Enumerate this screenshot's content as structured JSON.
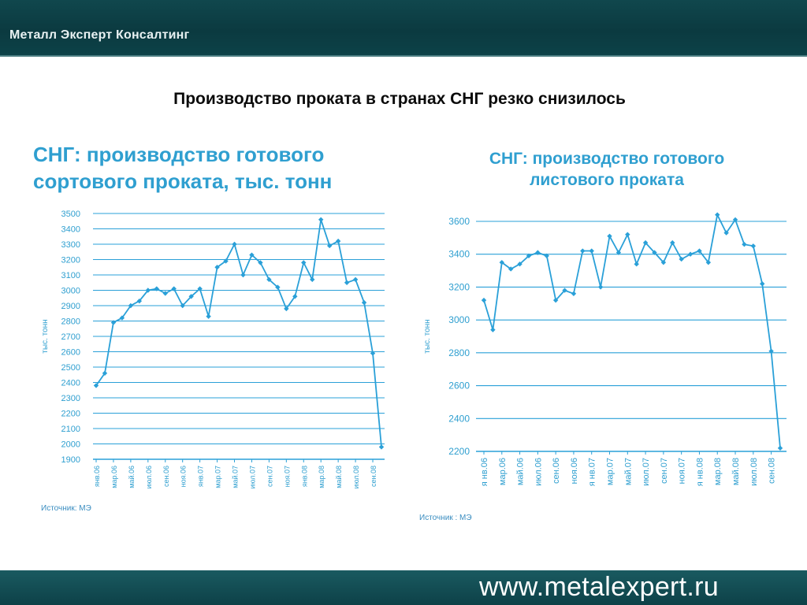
{
  "header": {
    "brand": "Металл Эксперт Консалтинг"
  },
  "footer": {
    "website": "www.metalexpert.ru"
  },
  "slide": {
    "title": "Производство проката в странах СНГ резко снизилось"
  },
  "colors": {
    "line": "#2aa0d8",
    "text": "#2f9fd0",
    "axis": "#3a8dc0"
  },
  "chart_data": [
    {
      "type": "line",
      "title_line1": "СНГ: производство готового",
      "title_line2": "сортового проката, тыс. тонн",
      "ylabel": "тыс. тонн",
      "ylim": [
        1900,
        3500
      ],
      "yticks": [
        1900,
        2000,
        2100,
        2200,
        2300,
        2400,
        2500,
        2600,
        2700,
        2800,
        2900,
        3000,
        3100,
        3200,
        3300,
        3400,
        3500
      ],
      "x_tick_labels": [
        "янв.06",
        "мар.06",
        "май.06",
        "июл.06",
        "сен.06",
        "ноя.06",
        "янв.07",
        "мар.07",
        "май.07",
        "июл.07",
        "сен.07",
        "ноя.07",
        "янв.08",
        "мар.08",
        "май.08",
        "июл.08",
        "сен.08"
      ],
      "source": "Источник: МЭ",
      "grid": true,
      "values": [
        2380,
        2460,
        2790,
        2820,
        2900,
        2930,
        3000,
        3010,
        2980,
        3010,
        2900,
        2960,
        3010,
        2830,
        3150,
        3190,
        3300,
        3100,
        3230,
        3180,
        3070,
        3020,
        2880,
        2960,
        3180,
        3070,
        3460,
        3290,
        3320,
        3050,
        3070,
        2920,
        2590,
        1980
      ]
    },
    {
      "type": "line",
      "title_line1": "СНГ: производство готового",
      "title_line2": "листового проката",
      "ylabel": "тыс. тонн",
      "ylim": [
        2200,
        3600
      ],
      "yticks": [
        2200,
        2400,
        2600,
        2800,
        3000,
        3200,
        3400,
        3600
      ],
      "x_tick_labels": [
        "я нв.06",
        "мар.06",
        "май.06",
        "июл.06",
        "сен.06",
        "ноя.06",
        "я нв.07",
        "мар.07",
        "май.07",
        "июл.07",
        "сен.07",
        "ноя.07",
        "я нв.08",
        "мар.08",
        "май.08",
        "июл.08",
        "сен.08"
      ],
      "source": "Источник : МЭ",
      "grid": true,
      "values": [
        3120,
        2940,
        3350,
        3310,
        3340,
        3390,
        3410,
        3390,
        3120,
        3180,
        3160,
        3420,
        3420,
        3200,
        3510,
        3410,
        3520,
        3340,
        3470,
        3410,
        3350,
        3470,
        3370,
        3400,
        3420,
        3350,
        3640,
        3530,
        3610,
        3460,
        3450,
        3220,
        2810,
        2220
      ]
    }
  ]
}
